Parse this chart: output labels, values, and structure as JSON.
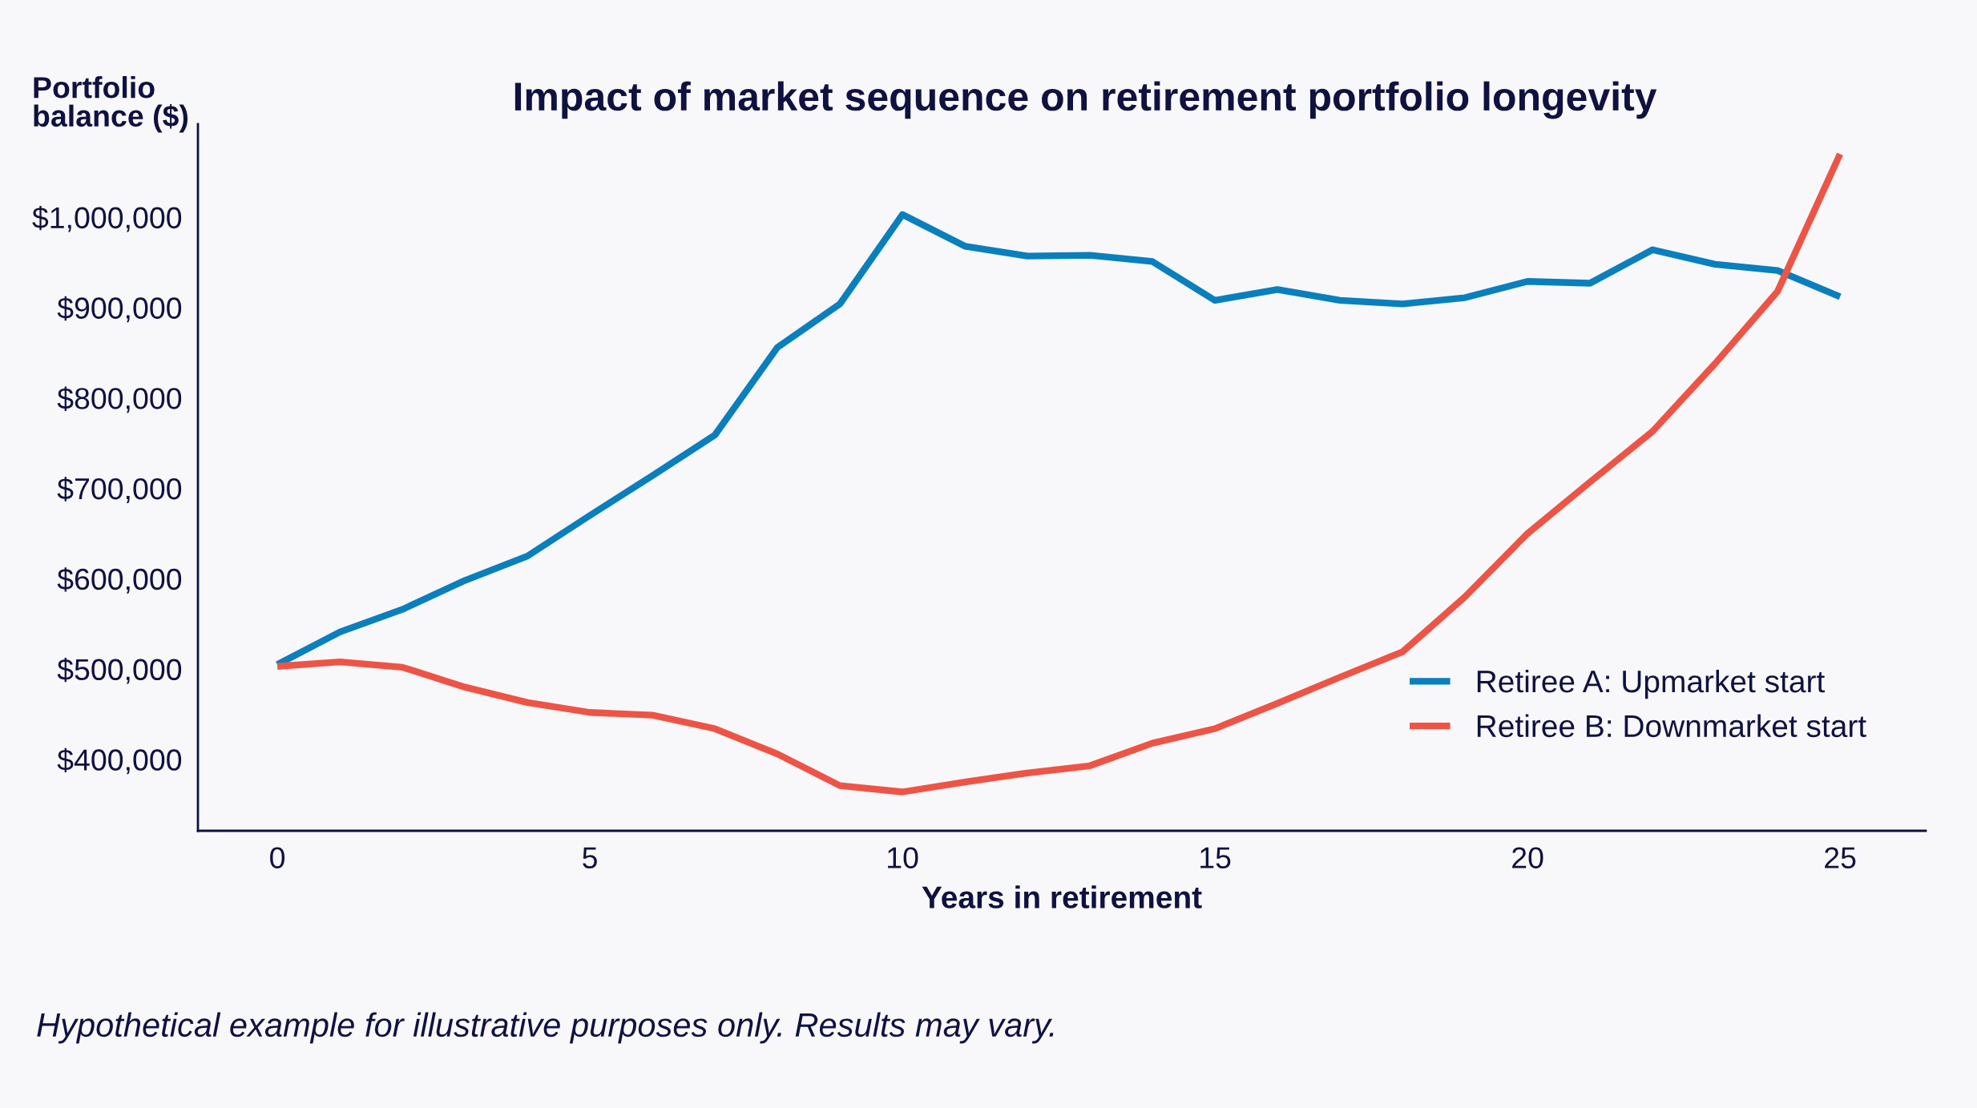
{
  "chart_data": {
    "type": "line",
    "title": "Impact of market sequence on retirement portfolio longevity",
    "xlabel": "Years in retirement",
    "ylabel": "Portfolio\nbalance ($)",
    "annotations": [
      "Hypothetical example for illustrative purposes only. Results may vary."
    ],
    "x": [
      0,
      1,
      2,
      3,
      4,
      5,
      6,
      7,
      8,
      9,
      10,
      11,
      12,
      13,
      14,
      15,
      16,
      17,
      18,
      19,
      20,
      21,
      22,
      23,
      24,
      25
    ],
    "series": [
      {
        "name": "Retiree A: Upmarket start",
        "color": "#0a7fbd",
        "values": [
          505000,
          541000,
          566000,
          598000,
          625000,
          670000,
          714000,
          759000,
          856000,
          904000,
          1003000,
          968000,
          957000,
          958000,
          951000,
          908000,
          920000,
          908000,
          904000,
          911000,
          929000,
          927000,
          964000,
          948000,
          941000,
          912000
        ]
      },
      {
        "name": "Retiree B: Downmarket start",
        "color": "#ee5446",
        "values": [
          503000,
          508000,
          502000,
          480000,
          463000,
          452000,
          449000,
          434000,
          406000,
          371000,
          364000,
          375000,
          385000,
          393000,
          418000,
          434000,
          462000,
          491000,
          519000,
          580000,
          650000,
          707000,
          763000,
          838000,
          918000,
          1070000
        ]
      }
    ],
    "xlim": [
      -1.27,
      26.37
    ],
    "ylim": [
      321000,
      1103000
    ],
    "xticks": [
      0,
      5,
      10,
      15,
      20,
      25
    ],
    "yticks": [
      {
        "value": 400000,
        "label": "$400,000"
      },
      {
        "value": 500000,
        "label": "$500,000"
      },
      {
        "value": 600000,
        "label": "$600,000"
      },
      {
        "value": 700000,
        "label": "$700,000"
      },
      {
        "value": 800000,
        "label": "$800,000"
      },
      {
        "value": 900000,
        "label": "$900,000"
      },
      {
        "value": 1000000,
        "label": "$1,000,000"
      }
    ],
    "grid": false,
    "legend": "bottom right",
    "marker": "none",
    "line_style": "solid"
  }
}
